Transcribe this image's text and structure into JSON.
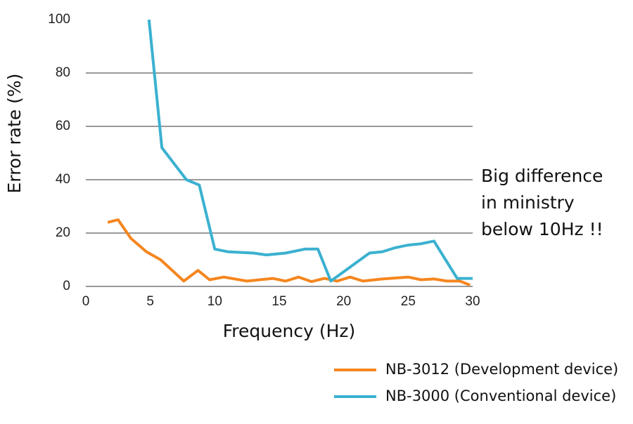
{
  "chart_data": {
    "type": "line",
    "x_label": "Frequency (Hz)",
    "y_label": "Error rate (%)",
    "annotation": [
      "Big difference",
      "in ministry",
      "below 10Hz !!"
    ],
    "xlim": [
      0,
      30
    ],
    "xticks": [
      0,
      5,
      10,
      15,
      20,
      25,
      30
    ],
    "ylim": [
      0,
      100
    ],
    "yticks": [
      0,
      20,
      40,
      60,
      80,
      100
    ],
    "grid": true,
    "legend": "bottom-right",
    "series": [
      {
        "name": "NB-3012 (Development device)",
        "color": "#f5861f",
        "x": [
          1.7,
          2.5,
          3.5,
          4.7,
          5.8,
          7.6,
          8.7,
          9.6,
          10.7,
          12.5,
          14.5,
          15.5,
          16.5,
          17.5,
          18.5,
          19.5,
          20.5,
          21.5,
          23,
          25,
          26,
          27,
          28,
          29,
          29.8
        ],
        "values": [
          24,
          25,
          18,
          13,
          10,
          2,
          6,
          2.5,
          3.5,
          2,
          3,
          2,
          3.5,
          1.8,
          3,
          2,
          3.5,
          2,
          2.8,
          3.5,
          2.5,
          2.8,
          2,
          2,
          0.5
        ]
      },
      {
        "name": "NB-3000 (Conventional device)",
        "color": "#3bb1d0",
        "x": [
          4.9,
          5.9,
          7.8,
          8.8,
          10,
          11,
          13,
          14,
          15.5,
          17,
          18,
          19,
          20,
          21,
          22,
          23,
          24,
          25,
          26,
          27,
          28.8,
          30
        ],
        "values": [
          100,
          52,
          40,
          38,
          14,
          13,
          12.5,
          11.8,
          12.5,
          14,
          14,
          2,
          5.5,
          9,
          12.5,
          13,
          14.5,
          15.5,
          16,
          17,
          3,
          3
        ]
      }
    ]
  }
}
